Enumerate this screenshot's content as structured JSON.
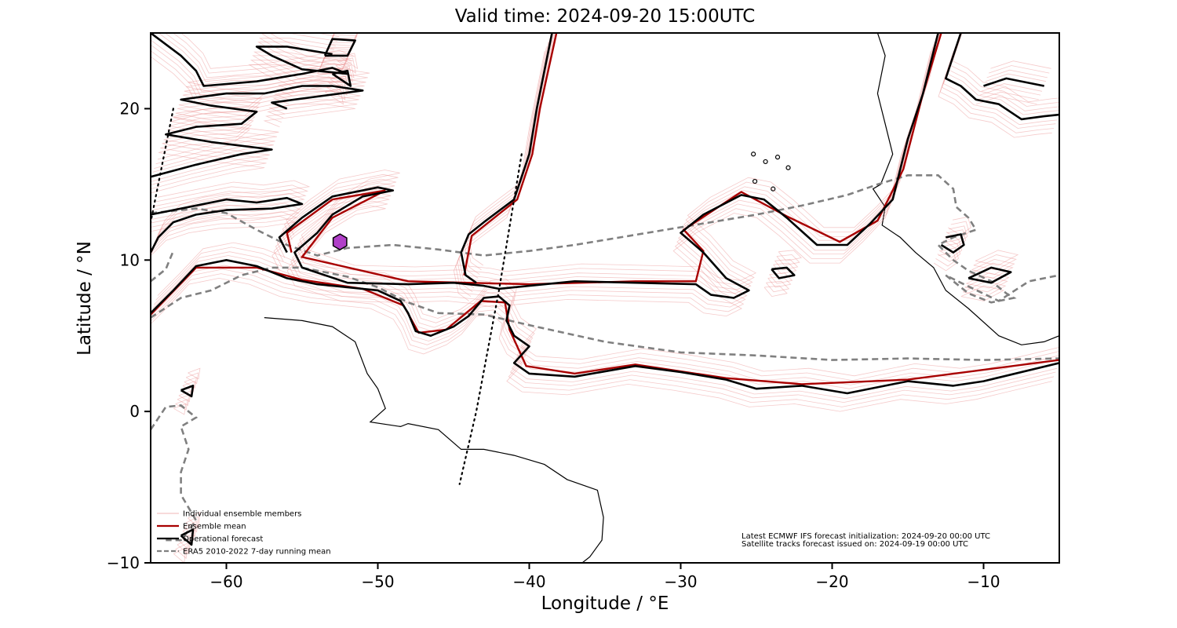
{
  "title": "Valid time: 2024-09-20 15:00UTC",
  "xlabel": "Longitude / °E",
  "ylabel": "Latitude / °N",
  "chart_data": {
    "type": "map",
    "xlim": [
      -65,
      -5
    ],
    "ylim": [
      -10,
      25
    ],
    "x_ticks": [
      -60,
      -50,
      -40,
      -30,
      -20,
      -10
    ],
    "x_tick_labels": [
      "−60",
      "−50",
      "−40",
      "−30",
      "−20",
      "−10"
    ],
    "y_ticks": [
      -10,
      0,
      10,
      20
    ],
    "y_tick_labels": [
      "−10",
      "0",
      "10",
      "20"
    ],
    "grid": false,
    "legend": {
      "placement": "lower-left",
      "entries": [
        {
          "label": "Individual ensemble members",
          "color": "#f0b4b4",
          "style": "thin"
        },
        {
          "label": "Ensemble mean",
          "color": "#a80000",
          "style": "solid"
        },
        {
          "label": "Operational forecast",
          "color": "#000000",
          "style": "solid"
        },
        {
          "label": "ERA5 2010-2022 7-day running mean",
          "color": "#808080",
          "style": "dashed"
        }
      ]
    },
    "info_lines": [
      "Latest ECMWF IFS forecast initialization: 2024-09-20 00:00 UTC",
      "Satellite tracks forecast issued on: 2024-09-19 00:00 UTC"
    ],
    "marker": {
      "lon": -52.5,
      "lat": 11.2,
      "color": "#b040c8"
    },
    "series": {
      "operational": [
        [
          [
            -65,
            6.5
          ],
          [
            -63.5,
            8
          ],
          [
            -62,
            9.6
          ],
          [
            -60,
            10
          ],
          [
            -58,
            9.6
          ],
          [
            -56,
            8.8
          ],
          [
            -54,
            8.4
          ],
          [
            -52,
            8.2
          ],
          [
            -50,
            8
          ],
          [
            -48.5,
            7.3
          ],
          [
            -48,
            6.5
          ],
          [
            -47.5,
            5.3
          ],
          [
            -46.5,
            5
          ],
          [
            -45,
            5.6
          ],
          [
            -44,
            6.3
          ],
          [
            -43,
            7.5
          ],
          [
            -42,
            7.6
          ],
          [
            -41.3,
            7
          ],
          [
            -41.5,
            6
          ],
          [
            -41,
            5
          ],
          [
            -40,
            4.3
          ],
          [
            -41,
            3.2
          ],
          [
            -40,
            2.5
          ],
          [
            -37,
            2.3
          ],
          [
            -33,
            3
          ],
          [
            -30,
            2.6
          ],
          [
            -27,
            2.1
          ],
          [
            -25,
            1.5
          ],
          [
            -22,
            1.7
          ],
          [
            -19,
            1.2
          ],
          [
            -15,
            2
          ],
          [
            -12,
            1.7
          ],
          [
            -10,
            2
          ],
          [
            -5,
            3.2
          ]
        ],
        [
          [
            -56,
            10.5
          ],
          [
            -56.5,
            11.5
          ],
          [
            -55,
            12.8
          ],
          [
            -53,
            14.2
          ],
          [
            -50,
            14.8
          ],
          [
            -49,
            14.6
          ],
          [
            -51,
            14.2
          ],
          [
            -53,
            13
          ],
          [
            -54,
            11.8
          ],
          [
            -55.5,
            10.5
          ],
          [
            -55,
            9.5
          ],
          [
            -52,
            8.5
          ],
          [
            -48,
            8.4
          ],
          [
            -45,
            8.5
          ],
          [
            -43,
            8.3
          ],
          [
            -42,
            8.1
          ],
          [
            -40,
            8.3
          ],
          [
            -37,
            8.6
          ],
          [
            -33,
            8.5
          ],
          [
            -29,
            8.4
          ],
          [
            -28,
            7.7
          ],
          [
            -26.5,
            7.5
          ],
          [
            -25.5,
            8
          ],
          [
            -27,
            8.8
          ],
          [
            -28.5,
            10.5
          ],
          [
            -30,
            11.8
          ],
          [
            -28.5,
            13
          ],
          [
            -26,
            14.3
          ],
          [
            -24.5,
            14
          ],
          [
            -23,
            12.8
          ],
          [
            -21,
            11
          ],
          [
            -19,
            11
          ],
          [
            -17.5,
            12.4
          ],
          [
            -16,
            14
          ],
          [
            -15.5,
            16
          ],
          [
            -15,
            18
          ],
          [
            -14,
            21
          ],
          [
            -13,
            25
          ]
        ],
        [
          [
            -38.5,
            25
          ],
          [
            -39.5,
            20
          ],
          [
            -40,
            17
          ],
          [
            -41,
            14
          ],
          [
            -43,
            12.5
          ],
          [
            -44,
            11.7
          ],
          [
            -44.5,
            10.5
          ],
          [
            -44.2,
            9
          ],
          [
            -43.5,
            8.5
          ]
        ],
        [
          [
            -65,
            15.5
          ],
          [
            -62,
            16.3
          ],
          [
            -59,
            17
          ],
          [
            -57,
            17.3
          ],
          [
            -61,
            17.8
          ],
          [
            -64,
            18.3
          ],
          [
            -62,
            18.8
          ],
          [
            -59,
            19
          ],
          [
            -58,
            19.8
          ],
          [
            -61,
            20.2
          ],
          [
            -63,
            20.6
          ],
          [
            -60,
            21
          ],
          [
            -57.5,
            21
          ],
          [
            -55,
            21.5
          ],
          [
            -53,
            21.5
          ],
          [
            -51,
            21.2
          ],
          [
            -54,
            20.8
          ],
          [
            -57,
            20.4
          ],
          [
            -56,
            20
          ]
        ],
        [
          [
            -65,
            25
          ],
          [
            -63,
            23.5
          ],
          [
            -62,
            22.5
          ],
          [
            -61.5,
            21.5
          ],
          [
            -58,
            21.8
          ],
          [
            -55,
            22.3
          ],
          [
            -53,
            22.7
          ],
          [
            -52,
            22.3
          ],
          [
            -55,
            22.6
          ],
          [
            -57,
            23.5
          ],
          [
            -58,
            24.1
          ],
          [
            -56,
            24.1
          ],
          [
            -53,
            23.6
          ]
        ],
        [
          [
            -65,
            13
          ],
          [
            -63,
            13.4
          ],
          [
            -60,
            14
          ],
          [
            -58,
            13.8
          ],
          [
            -56,
            14.1
          ],
          [
            -55,
            13.7
          ],
          [
            -57,
            13.4
          ],
          [
            -60,
            13.3
          ],
          [
            -62,
            13
          ],
          [
            -63.5,
            12.5
          ],
          [
            -64.5,
            11.5
          ],
          [
            -65,
            10.5
          ]
        ],
        [
          [
            -11.5,
            25
          ],
          [
            -12.5,
            22
          ],
          [
            -11.5,
            21.5
          ],
          [
            -10.5,
            20.6
          ],
          [
            -9,
            20.3
          ],
          [
            -7.5,
            19.3
          ],
          [
            -6,
            19.5
          ],
          [
            -5,
            19.6
          ]
        ],
        [
          [
            -10,
            21.5
          ],
          [
            -8.5,
            22
          ],
          [
            -6,
            21.5
          ]
        ],
        [
          [
            -11,
            8.8
          ],
          [
            -9.5,
            9.5
          ],
          [
            -8.2,
            9.2
          ],
          [
            -9.5,
            8.5
          ],
          [
            -11,
            8.8
          ]
        ],
        [
          [
            -12.5,
            11.5
          ],
          [
            -11.5,
            11.7
          ],
          [
            -11.3,
            11
          ],
          [
            -12,
            10.5
          ],
          [
            -12.8,
            11
          ]
        ],
        [
          [
            -24,
            9.4
          ],
          [
            -23,
            9.5
          ],
          [
            -22.5,
            9
          ],
          [
            -23.5,
            8.8
          ],
          [
            -24,
            9.4
          ]
        ],
        [
          [
            -63,
            1.4
          ],
          [
            -62.2,
            1.7
          ],
          [
            -62.3,
            1
          ],
          [
            -63,
            1.4
          ]
        ],
        [
          [
            -53.5,
            23.5
          ],
          [
            -53,
            24.6
          ],
          [
            -51.5,
            24.5
          ],
          [
            -52,
            23.5
          ],
          [
            -53.5,
            23.5
          ]
        ],
        [
          [
            -53,
            22.3
          ],
          [
            -52,
            22.5
          ],
          [
            -51.8,
            21.5
          ],
          [
            -53,
            22.3
          ]
        ],
        [
          [
            -63,
            -8.2
          ],
          [
            -62.2,
            -7.8
          ],
          [
            -62.3,
            -8.8
          ],
          [
            -63,
            -8.2
          ]
        ]
      ],
      "era5_mean": [
        [
          [
            -65,
            13.1
          ],
          [
            -62,
            13.4
          ],
          [
            -60,
            13.1
          ],
          [
            -58,
            12
          ],
          [
            -56,
            11
          ],
          [
            -54,
            10.3
          ],
          [
            -52,
            10.8
          ],
          [
            -49,
            11
          ],
          [
            -46,
            10.7
          ],
          [
            -43,
            10.3
          ],
          [
            -40,
            10.6
          ],
          [
            -37,
            11
          ],
          [
            -34,
            11.5
          ],
          [
            -31,
            12
          ],
          [
            -28,
            12.5
          ],
          [
            -25,
            13
          ],
          [
            -22,
            13.6
          ],
          [
            -19,
            14.3
          ],
          [
            -17,
            15
          ],
          [
            -15,
            15.6
          ],
          [
            -13,
            15.6
          ],
          [
            -12,
            14.7
          ],
          [
            -11.8,
            13.5
          ],
          [
            -11,
            12.8
          ],
          [
            -10.5,
            12
          ],
          [
            -12,
            11.5
          ],
          [
            -13,
            11
          ],
          [
            -12,
            10
          ],
          [
            -11,
            9.3
          ],
          [
            -9.5,
            8.6
          ],
          [
            -8.5,
            7.8
          ],
          [
            -8,
            7.5
          ],
          [
            -9.5,
            7.2
          ],
          [
            -11,
            7.8
          ],
          [
            -12.5,
            9
          ],
          [
            -11.5,
            8.5
          ],
          [
            -9,
            7.3
          ],
          [
            -7,
            8.6
          ],
          [
            -5,
            9
          ]
        ],
        [
          [
            -65,
            6.2
          ],
          [
            -63,
            7.5
          ],
          [
            -61,
            8
          ],
          [
            -59,
            9
          ],
          [
            -57,
            9.5
          ],
          [
            -55,
            9.5
          ],
          [
            -52,
            8.9
          ],
          [
            -50,
            8.2
          ],
          [
            -48,
            7.2
          ],
          [
            -46,
            6.5
          ],
          [
            -43,
            6.4
          ],
          [
            -40,
            5.7
          ],
          [
            -35,
            4.6
          ],
          [
            -30,
            3.9
          ],
          [
            -25,
            3.7
          ],
          [
            -20,
            3.4
          ],
          [
            -15,
            3.5
          ],
          [
            -10,
            3.4
          ],
          [
            -5,
            3.5
          ]
        ],
        [
          [
            -65,
            8.6
          ],
          [
            -64,
            9.4
          ],
          [
            -63.5,
            10.6
          ]
        ],
        [
          [
            -65,
            -1.2
          ],
          [
            -64,
            0.3
          ],
          [
            -63,
            0.4
          ],
          [
            -62,
            -0.4
          ],
          [
            -63,
            -1
          ],
          [
            -62.5,
            -2.5
          ],
          [
            -63,
            -4
          ],
          [
            -63,
            -5.5
          ],
          [
            -62,
            -7.2
          ],
          [
            -63,
            -8.5
          ],
          [
            -64,
            -8.5
          ]
        ]
      ],
      "ensemble_mean": [
        [
          [
            -65,
            6.4
          ],
          [
            -62,
            9.5
          ],
          [
            -58,
            9.5
          ],
          [
            -55,
            8.7
          ],
          [
            -51,
            8.1
          ],
          [
            -48.3,
            7
          ],
          [
            -47.3,
            5.2
          ],
          [
            -45.5,
            5.4
          ],
          [
            -43.2,
            7.3
          ],
          [
            -41.6,
            7.2
          ],
          [
            -41.3,
            5.4
          ],
          [
            -40.2,
            3
          ],
          [
            -37,
            2.5
          ],
          [
            -33,
            3.1
          ],
          [
            -27,
            2.2
          ],
          [
            -22,
            1.8
          ],
          [
            -15,
            2.1
          ],
          [
            -5,
            3.4
          ]
        ],
        [
          [
            -55.7,
            10.5
          ],
          [
            -56,
            11.8
          ],
          [
            -53,
            14
          ],
          [
            -49.5,
            14.6
          ],
          [
            -53,
            12.8
          ],
          [
            -55,
            10.2
          ],
          [
            -48,
            8.6
          ],
          [
            -40,
            8.4
          ],
          [
            -33,
            8.6
          ],
          [
            -29,
            8.6
          ],
          [
            -28.5,
            10.6
          ],
          [
            -29.8,
            12
          ],
          [
            -26,
            14.5
          ],
          [
            -23,
            12.9
          ],
          [
            -19.5,
            11.2
          ],
          [
            -17,
            12.6
          ],
          [
            -15.3,
            16
          ],
          [
            -14,
            21
          ],
          [
            -12.8,
            25
          ]
        ],
        [
          [
            -38.2,
            25
          ],
          [
            -39.3,
            20
          ],
          [
            -39.8,
            17
          ],
          [
            -40.8,
            14
          ],
          [
            -43.8,
            11.6
          ],
          [
            -44.3,
            9
          ]
        ]
      ],
      "ensemble_members_offsets": [
        -0.9,
        -0.6,
        -0.35,
        0.3,
        0.55,
        0.85,
        1.15,
        -1.2
      ],
      "satellite_tracks": [
        [
          [
            -63.5,
            20
          ],
          [
            -65,
            12.5
          ]
        ],
        [
          [
            -40.5,
            17
          ],
          [
            -42,
            8
          ],
          [
            -43.5,
            0
          ],
          [
            -44.6,
            -4.8
          ]
        ]
      ]
    }
  }
}
